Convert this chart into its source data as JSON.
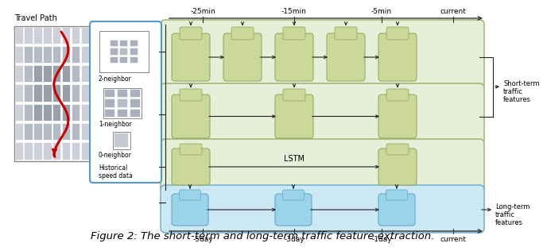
{
  "title": "Figure 2: The short-term and long-term traffic feature extraction.",
  "title_fontsize": 9.5,
  "top_axis_labels": [
    "-25min",
    "-15min",
    "-5min",
    "current"
  ],
  "bottom_axis_labels": [
    "-5day",
    "-3day",
    "-1day",
    "current"
  ],
  "green_bg_color": "#e8efd8",
  "blue_bg_color": "#cce8f4",
  "green_cell_color": "#ccd898",
  "blue_cell_color": "#99d4e8",
  "arrow_color": "#222222",
  "travel_path_color": "#cc0000",
  "fig_bg": "#ffffff",
  "nb_border_color": "#5599cc",
  "green_ec": "#99aa66",
  "blue_ec": "#66aacc"
}
